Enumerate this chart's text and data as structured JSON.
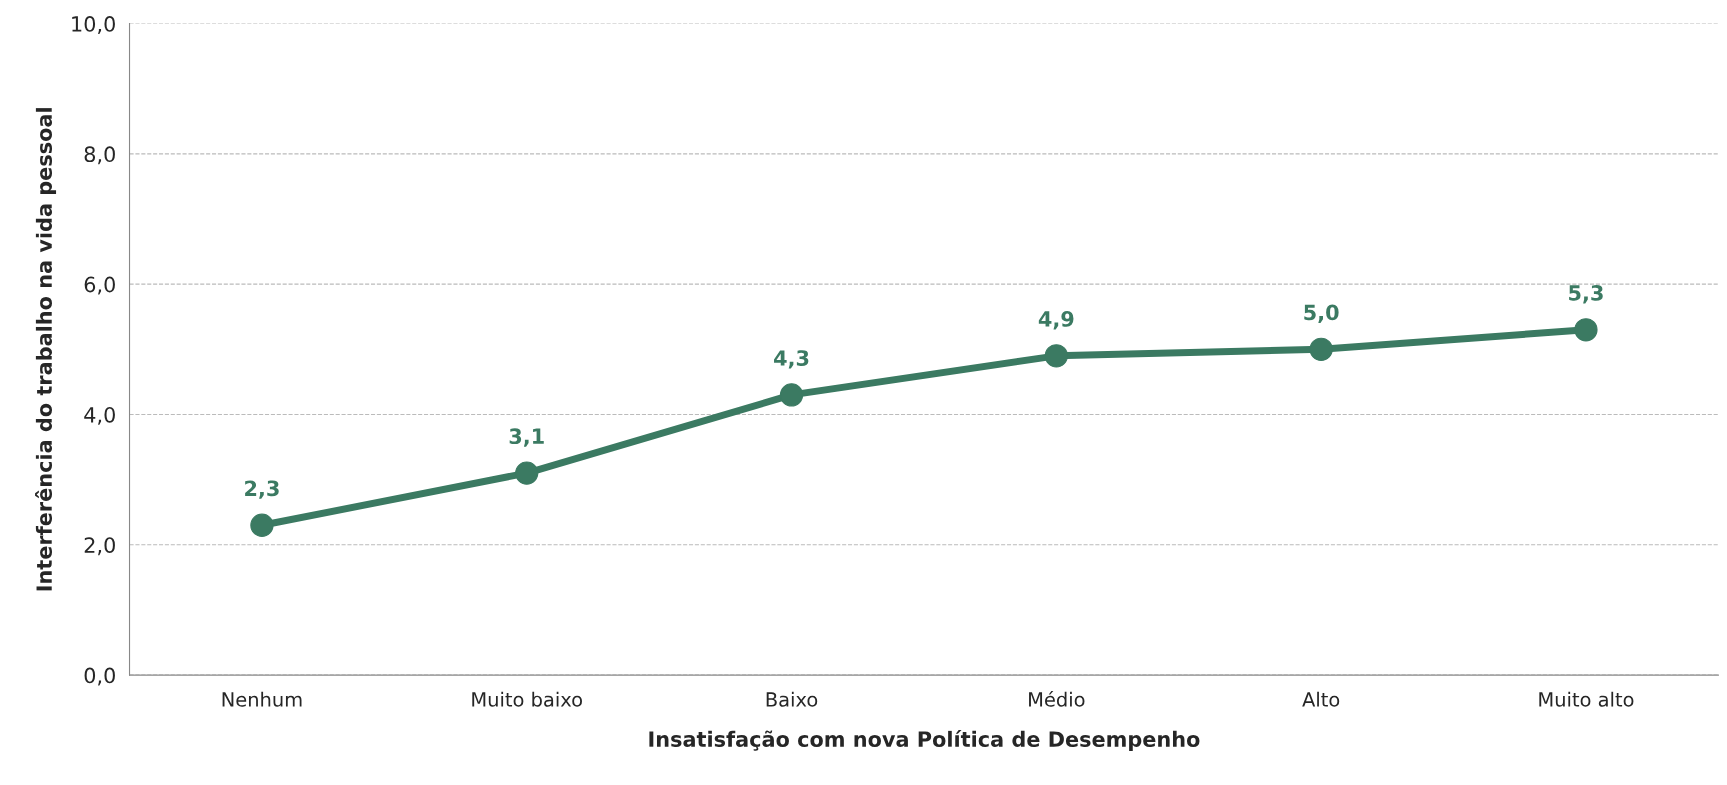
{
  "chart_data": {
    "type": "line",
    "xlabel": "Insatisfação com nova Política de Desempenho",
    "ylabel": "Interferência do trabalho na vida pessoal",
    "categories": [
      "Nenhum",
      "Muito baixo",
      "Baixo",
      "Médio",
      "Alto",
      "Muito alto"
    ],
    "series": [
      {
        "color": "#3b7a62",
        "values": [
          2.3,
          3.1,
          4.3,
          4.9,
          5.0,
          5.3
        ],
        "value_labels": [
          "2,3",
          "3,1",
          "4,3",
          "4,9",
          "5,0",
          "5,3"
        ]
      }
    ],
    "ylim": [
      0,
      10
    ],
    "yticks": [
      {
        "value": 0,
        "label": "0,0"
      },
      {
        "value": 2,
        "label": "2,0"
      },
      {
        "value": 4,
        "label": "4,0"
      },
      {
        "value": 6,
        "label": "6,0"
      },
      {
        "value": 8,
        "label": "8,0"
      },
      {
        "value": 10,
        "label": "10,0"
      }
    ],
    "grid": "y",
    "marker": "circle",
    "line_style": "solid"
  }
}
